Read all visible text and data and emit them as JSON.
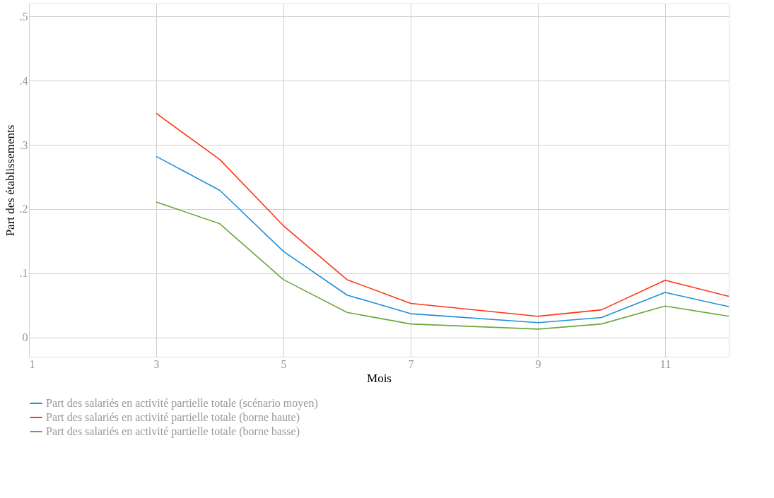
{
  "chart_data": {
    "type": "line",
    "xlabel": "Mois",
    "ylabel": "Part des établissements",
    "x": [
      3,
      4,
      5,
      6,
      7,
      9,
      10,
      11,
      12
    ],
    "series": [
      {
        "name": "Part des salariés en activité partielle totale (scénario moyen)",
        "color": "#1f8fd6",
        "values": [
          0.282,
          0.229,
          0.134,
          0.066,
          0.037,
          0.023,
          0.031,
          0.07,
          0.048
        ]
      },
      {
        "name": "Part des salariés en activité partielle totale (borne haute)",
        "color": "#ff3311",
        "values": [
          0.349,
          0.277,
          0.174,
          0.09,
          0.053,
          0.033,
          0.043,
          0.089,
          0.064
        ]
      },
      {
        "name": "Part des salariés en activité partielle totale (borne basse)",
        "color": "#6aa83c",
        "values": [
          0.211,
          0.177,
          0.09,
          0.039,
          0.021,
          0.013,
          0.021,
          0.049,
          0.033
        ]
      }
    ],
    "xlim": [
      1,
      12
    ],
    "xticks": [
      1,
      3,
      5,
      7,
      9,
      11
    ],
    "ylim": [
      -0.03,
      0.52
    ],
    "yticks": [
      0,
      {
        "value": 0.1,
        "label": ".1"
      },
      {
        "value": 0.2,
        "label": ".2"
      },
      {
        "value": 0.3,
        "label": ".3"
      },
      {
        "value": 0.4,
        "label": ".4"
      },
      {
        "value": 0.5,
        "label": ".5"
      }
    ],
    "grid": true,
    "legend": "bottom",
    "marker": "none",
    "line_style": "solid"
  }
}
